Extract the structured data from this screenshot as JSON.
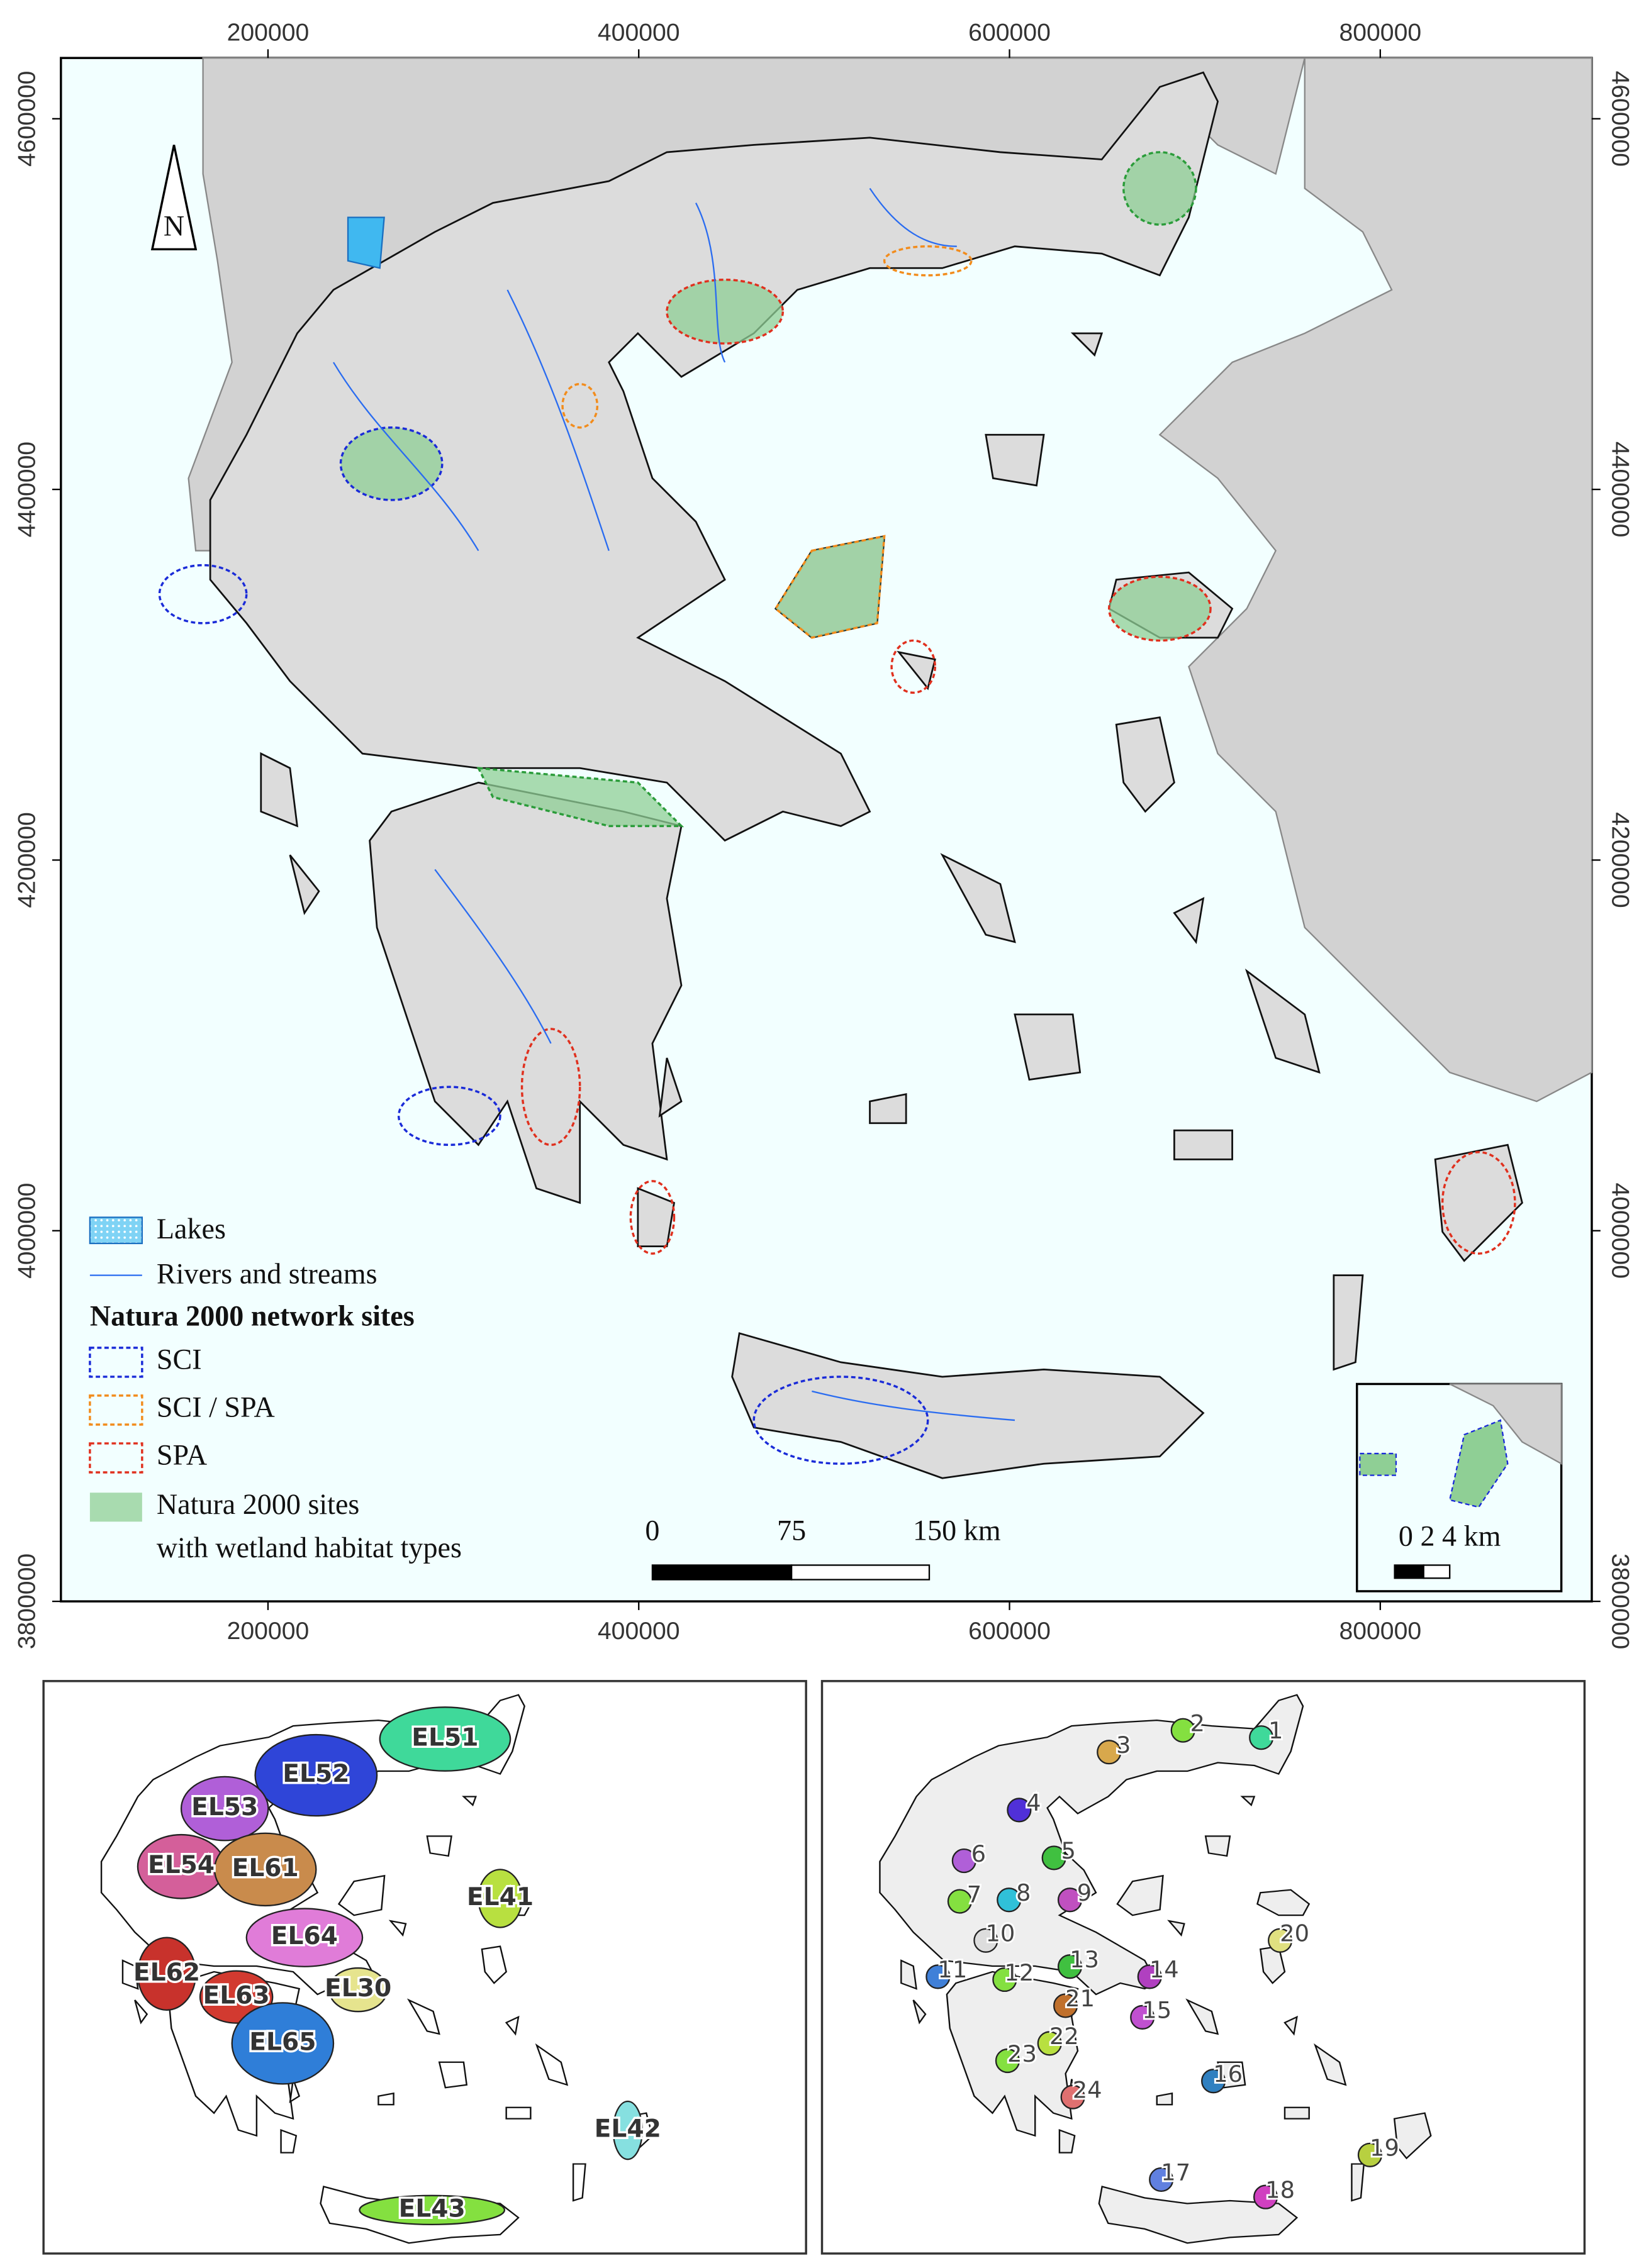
{
  "map": {
    "xlim": [
      88300,
      914100
    ],
    "ylim": [
      3800000,
      4632800
    ],
    "xticks": [
      200000,
      400000,
      600000,
      800000
    ],
    "yticks": [
      3800000,
      4000000,
      4200000,
      4400000,
      4600000
    ],
    "north_arrow": "N",
    "legend": {
      "lakes": "Lakes",
      "rivers": "Rivers and streams",
      "heading": "Natura 2000 network sites",
      "sci": "SCI",
      "sci_spa": "SCI / SPA",
      "spa": "SPA",
      "wetland": [
        "Natura 2000 sites",
        "with wetland habitat types"
      ]
    },
    "scale_bar": [
      "0",
      "75",
      "150 km"
    ],
    "inset_scale": "0 2 4 km"
  },
  "regions": [
    {
      "label": "EL51",
      "color": "#3fd99a"
    },
    {
      "label": "EL52",
      "color": "#2f45d8"
    },
    {
      "label": "EL53",
      "color": "#b05fd8"
    },
    {
      "label": "EL54",
      "color": "#d45f9a"
    },
    {
      "label": "EL61",
      "color": "#c98b4c"
    },
    {
      "label": "EL41",
      "color": "#b8e040"
    },
    {
      "label": "EL64",
      "color": "#e07cd8"
    },
    {
      "label": "EL62",
      "color": "#c8322c"
    },
    {
      "label": "EL30",
      "color": "#e6e48e"
    },
    {
      "label": "EL63",
      "color": "#d23a30"
    },
    {
      "label": "EL65",
      "color": "#2f7ed8"
    },
    {
      "label": "EL42",
      "color": "#86e0e0"
    },
    {
      "label": "EL43",
      "color": "#84e040"
    }
  ],
  "basins": [
    "1",
    "2",
    "3",
    "4",
    "5",
    "6",
    "7",
    "8",
    "9",
    "10",
    "11",
    "12",
    "13",
    "14",
    "15",
    "16",
    "17",
    "18",
    "19",
    "20",
    "21",
    "22",
    "23",
    "24"
  ]
}
